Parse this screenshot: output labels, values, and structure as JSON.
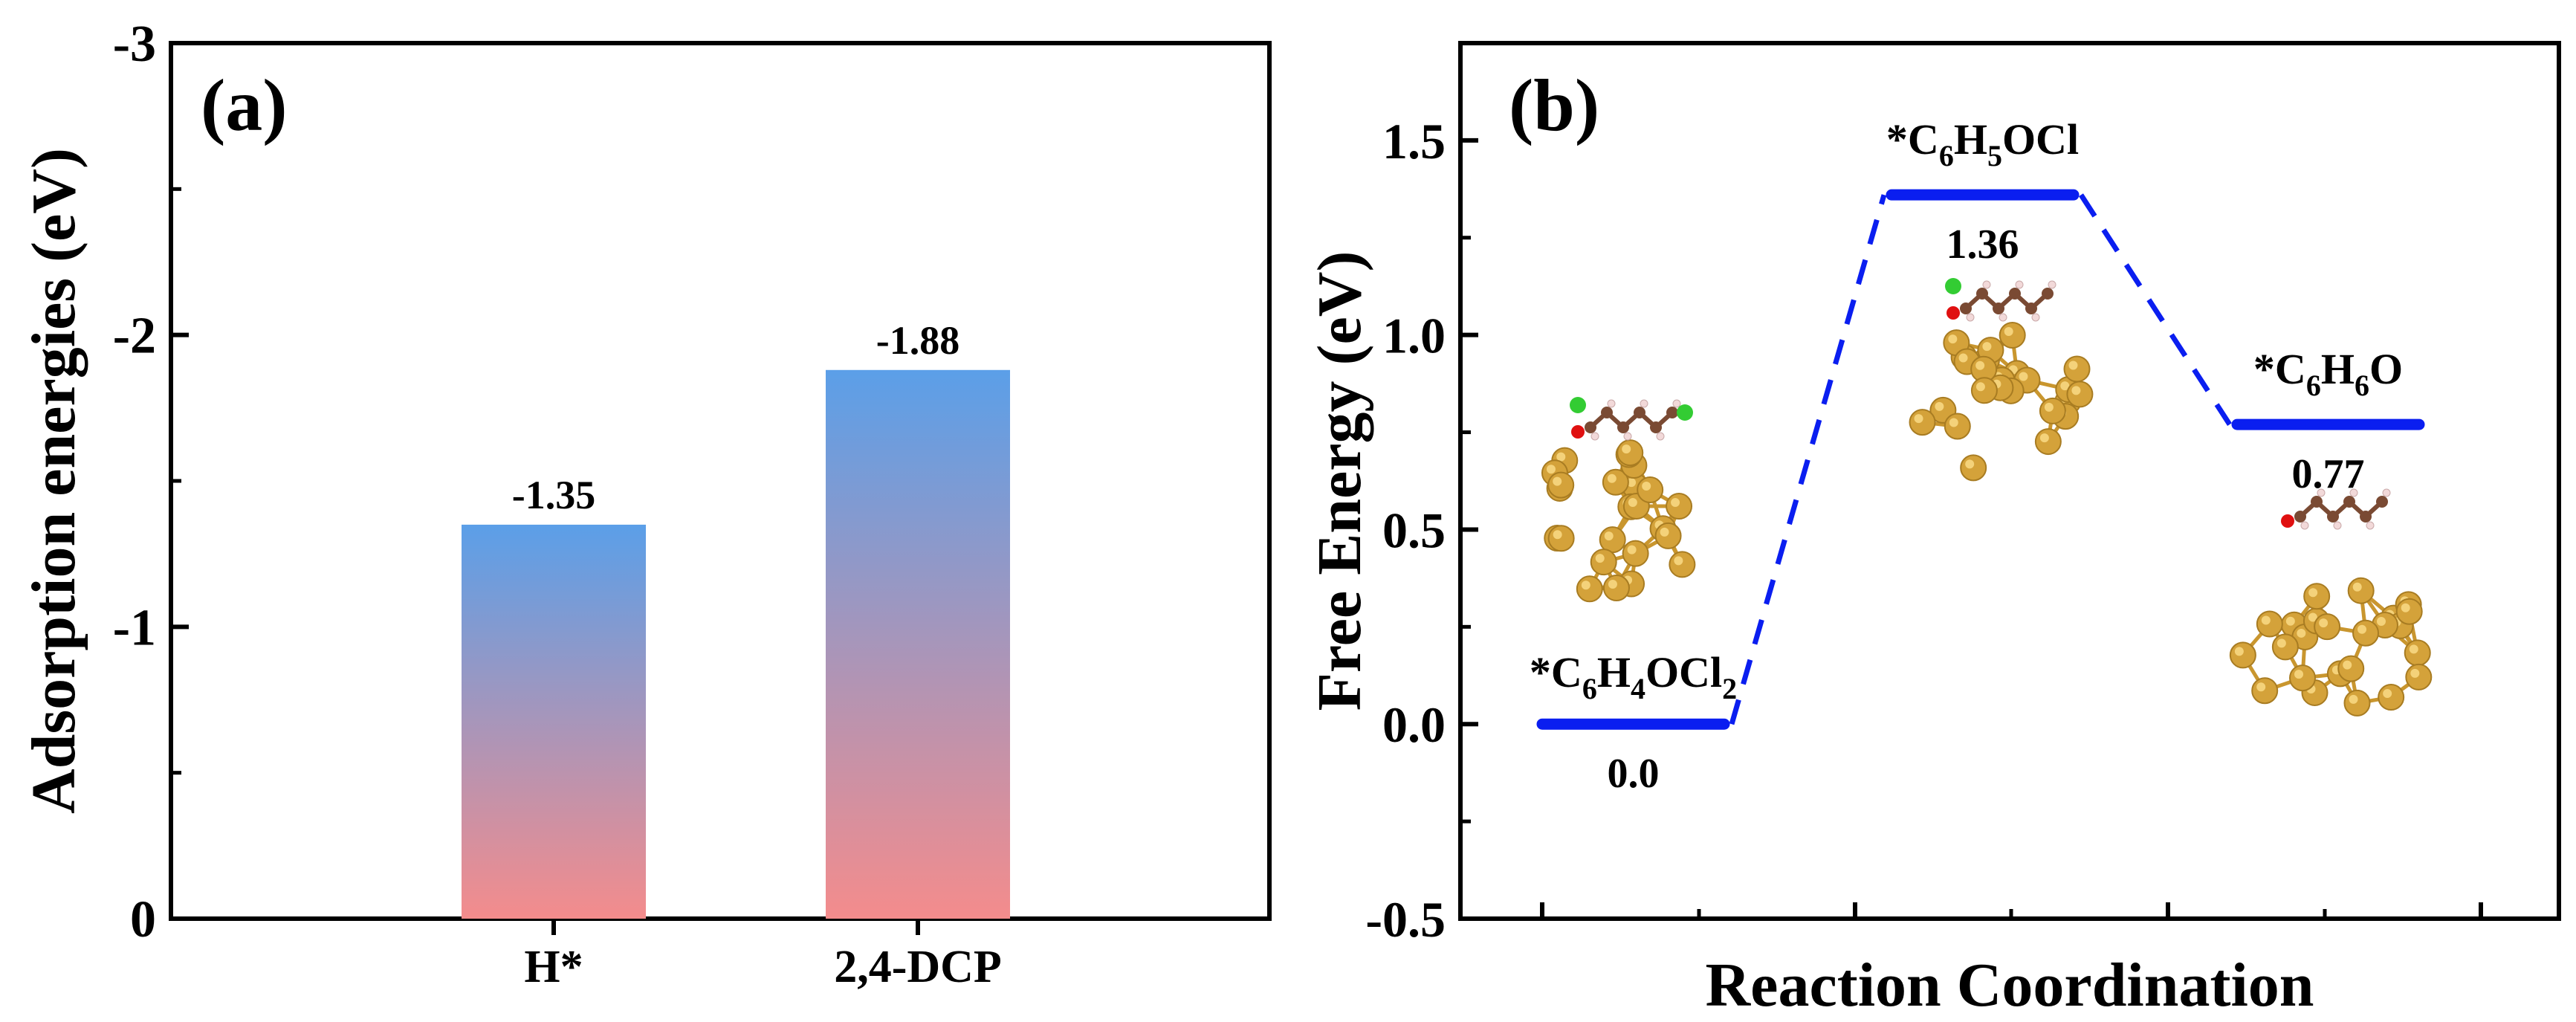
{
  "chart_data": [
    {
      "panel": "(a)",
      "type": "bar",
      "title": "",
      "xlabel": "",
      "ylabel": "Adsorption energies (eV)",
      "ylim": [
        0,
        -3
      ],
      "y_axis_inverted": true,
      "yticks": [
        "0",
        "-1",
        "-2",
        "-3"
      ],
      "ytick_values": [
        0,
        -1,
        -2,
        -3
      ],
      "categories": [
        "H*",
        "2,4-DCP"
      ],
      "values": [
        -1.35,
        -1.88
      ],
      "data_labels": [
        "-1.35",
        "-1.88"
      ],
      "bar_gradient": {
        "top": "#5B9FE8",
        "bottom": "#F48C8C"
      },
      "grid": false,
      "legend": "none"
    },
    {
      "panel": "(b)",
      "type": "line",
      "title": "",
      "xlabel": "Reaction Coordination",
      "ylabel": "Free Energy (eV)",
      "ylim": [
        -0.5,
        1.75
      ],
      "yticks": [
        "-0.5",
        "0.0",
        "0.5",
        "1.0",
        "1.5"
      ],
      "ytick_values": [
        -0.5,
        0.0,
        0.5,
        1.0,
        1.5
      ],
      "series": [
        {
          "name": "energy profile",
          "color": "#0A1EF0",
          "states": [
            {
              "species_prefix": "*C",
              "species_sub1": "6",
              "species_mid": "H",
              "species_sub2": "4",
              "species_tail": "OCl",
              "species_sub3": "2",
              "value": 0.0,
              "value_label": "0.0"
            },
            {
              "species_prefix": "*C",
              "species_sub1": "6",
              "species_mid": "H",
              "species_sub2": "5",
              "species_tail": "OCl",
              "species_sub3": "",
              "value": 1.36,
              "value_label": "1.36"
            },
            {
              "species_prefix": "*C",
              "species_sub1": "6",
              "species_mid": "H",
              "species_sub2": "6",
              "species_tail": "O",
              "species_sub3": "",
              "value": 0.77,
              "value_label": "0.77"
            }
          ]
        }
      ],
      "grid": false,
      "legend": "none"
    }
  ],
  "colors": {
    "axis": "#000000",
    "level_line": "#0A1EF0",
    "gold_atom": "#D4A23A",
    "gold_bond": "#C9962E",
    "carbon": "#7A4A33",
    "oxygen": "#E01010",
    "chlorine": "#33CC33",
    "hydrogen": "#F2D9D9"
  }
}
